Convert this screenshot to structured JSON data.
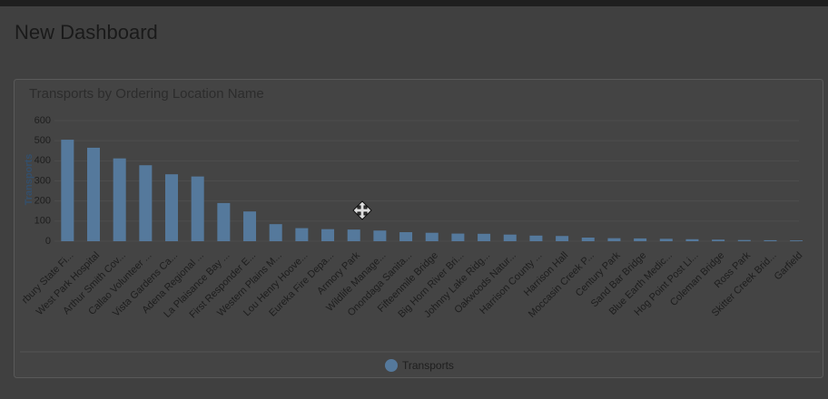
{
  "page_title": "New Dashboard",
  "chart_data": {
    "type": "bar",
    "title": "Transports by Ordering Location Name",
    "y_label": "Transports",
    "categories": [
      "rbury State Fi...",
      "West Park Hospital",
      "Arthur Smith Cov...",
      "Callao Volunteer ...",
      "Vista Gardens Ca...",
      "Adena Regional ...",
      "La Plaisance Bay ...",
      "First Responder E...",
      "Western Plains M...",
      "Lou Henry Hoove...",
      "Eureka Fire Depa...",
      "Armory Park",
      "Wildlife Manage...",
      "Onondaga Sanita...",
      "Fifteenmile Bridge",
      "Big Horn River Bri...",
      "Johnny Lake Ridg...",
      "Oakwoods Natur...",
      "Harrison County ...",
      "Harrison Hall",
      "Moccasin Creek P...",
      "Century Park",
      "Sand Bar Bridge",
      "Blue Earth Medic...",
      "Hog Point Post Li...",
      "Coleman Bridge",
      "Ross Park",
      "Skitter Creek Brid...",
      "Garfield"
    ],
    "series": [
      {
        "name": "Transports",
        "color": "#55799c",
        "values": [
          505,
          465,
          412,
          378,
          333,
          322,
          190,
          148,
          85,
          65,
          60,
          58,
          53,
          45,
          42,
          38,
          37,
          33,
          28,
          26,
          18,
          15,
          14,
          12,
          10,
          8,
          6,
          5,
          4
        ]
      }
    ],
    "ylim": [
      0,
      600
    ],
    "yticks": [
      0,
      100,
      200,
      300,
      400,
      500,
      600
    ],
    "grid": true,
    "legend": "bottom"
  }
}
